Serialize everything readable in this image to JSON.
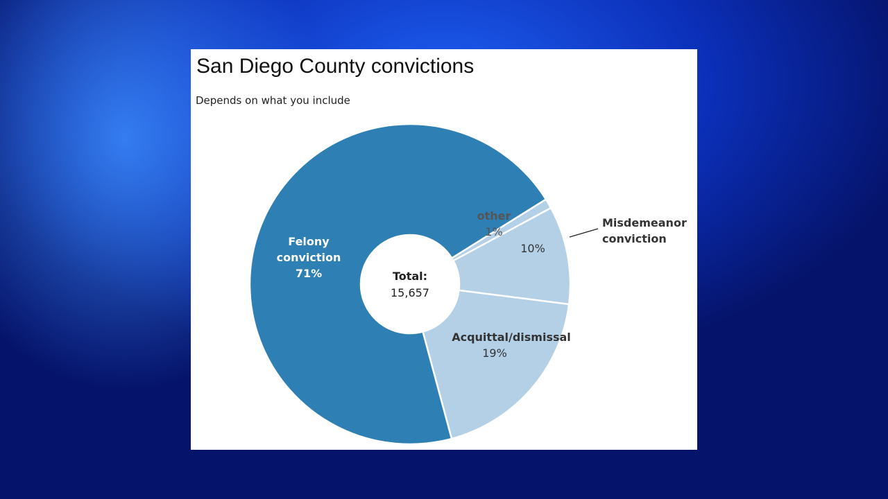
{
  "chart_data": {
    "type": "pie",
    "title": "San Diego County convictions",
    "subtitle": "Depends on what you include",
    "center_label": {
      "title": "Total:",
      "value": "15,657"
    },
    "slices": [
      {
        "name": "other",
        "label_lines": [
          "other"
        ],
        "value": 1,
        "pct_label": "1%",
        "color": "#b3d0e6"
      },
      {
        "name": "Misdemeanor conviction",
        "label_lines": [
          "Misdemeanor",
          "conviction"
        ],
        "value": 10,
        "pct_label": "10%",
        "color": "#b3d0e6"
      },
      {
        "name": "Acquittal/dismissal",
        "label_lines": [
          "Acquittal/dismissal"
        ],
        "value": 19,
        "pct_label": "19%",
        "color": "#b3d0e6"
      },
      {
        "name": "Felony conviction",
        "label_lines": [
          "Felony",
          "conviction"
        ],
        "value": 71,
        "pct_label": "71%",
        "color": "#2e7fb4"
      }
    ],
    "legend": "none"
  }
}
